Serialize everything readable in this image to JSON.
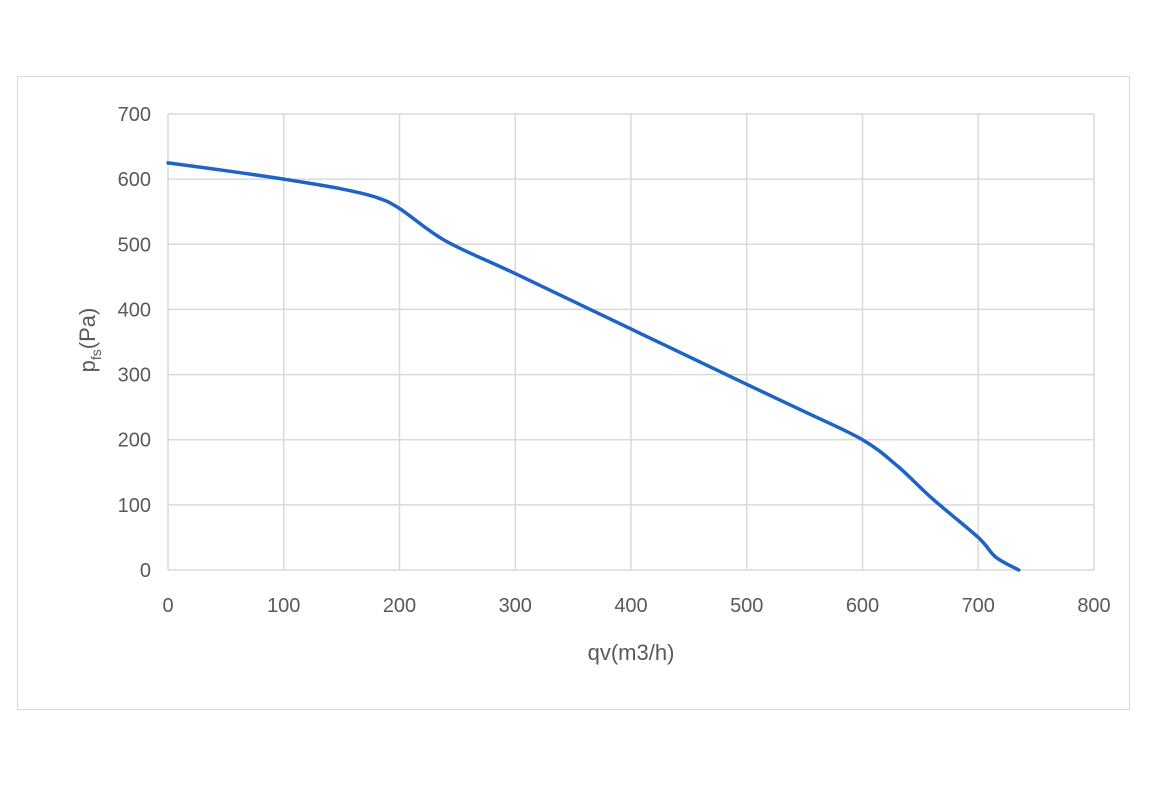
{
  "chart_data": {
    "type": "line",
    "title": "",
    "xlabel": "qv(m3/h)",
    "ylabel": {
      "main": "p",
      "subscript": "fs",
      "suffix": "(Pa)"
    },
    "xlim": [
      0,
      800
    ],
    "ylim": [
      0,
      700
    ],
    "x_ticks": [
      "0",
      "100",
      "200",
      "300",
      "400",
      "500",
      "600",
      "700",
      "800"
    ],
    "y_ticks": [
      "0",
      "100",
      "200",
      "300",
      "400",
      "500",
      "600",
      "700"
    ],
    "grid": true,
    "series": [
      {
        "color": "#1f63c6",
        "points": [
          [
            0,
            625
          ],
          [
            50,
            613
          ],
          [
            100,
            600
          ],
          [
            150,
            585
          ],
          [
            180,
            572
          ],
          [
            200,
            555
          ],
          [
            240,
            505
          ],
          [
            300,
            455
          ],
          [
            400,
            370
          ],
          [
            500,
            285
          ],
          [
            550,
            243
          ],
          [
            600,
            200
          ],
          [
            630,
            160
          ],
          [
            660,
            110
          ],
          [
            700,
            50
          ],
          [
            715,
            20
          ],
          [
            735,
            0
          ]
        ]
      }
    ]
  }
}
